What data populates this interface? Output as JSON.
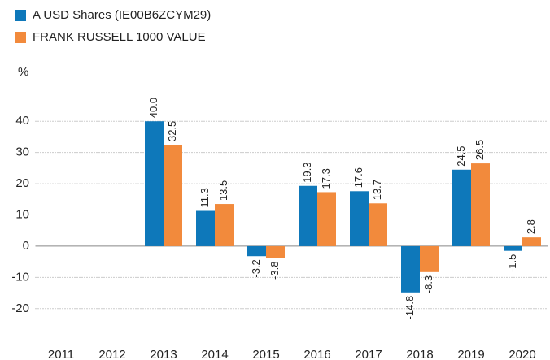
{
  "chart_data": {
    "type": "bar",
    "y_label": "%",
    "categories": [
      "2011",
      "2012",
      "2013",
      "2014",
      "2015",
      "2016",
      "2017",
      "2018",
      "2019",
      "2020"
    ],
    "series": [
      {
        "name": "A USD Shares (IE00B6ZCYM29)",
        "color": "#0e78ba",
        "values": [
          null,
          null,
          40.0,
          11.3,
          -3.2,
          19.3,
          17.6,
          -14.8,
          24.5,
          -1.5
        ],
        "value_labels": [
          null,
          null,
          "40.0",
          "11.3",
          "-3.2",
          "19.3",
          "17.6",
          "-14.8",
          "24.5",
          "-1.5"
        ]
      },
      {
        "name": "FRANK RUSSELL 1000 VALUE",
        "color": "#f28a3c",
        "values": [
          null,
          null,
          32.5,
          13.5,
          -3.8,
          17.3,
          13.7,
          -8.3,
          26.5,
          2.8
        ],
        "value_labels": [
          null,
          null,
          "32.5",
          "13.5",
          "-3.8",
          "17.3",
          "13.7",
          "-8.3",
          "26.5",
          "2.8"
        ]
      }
    ],
    "ylim": [
      -25,
      45
    ],
    "yticks": [
      -20,
      -10,
      0,
      10,
      20,
      30,
      40
    ],
    "grid": true
  }
}
